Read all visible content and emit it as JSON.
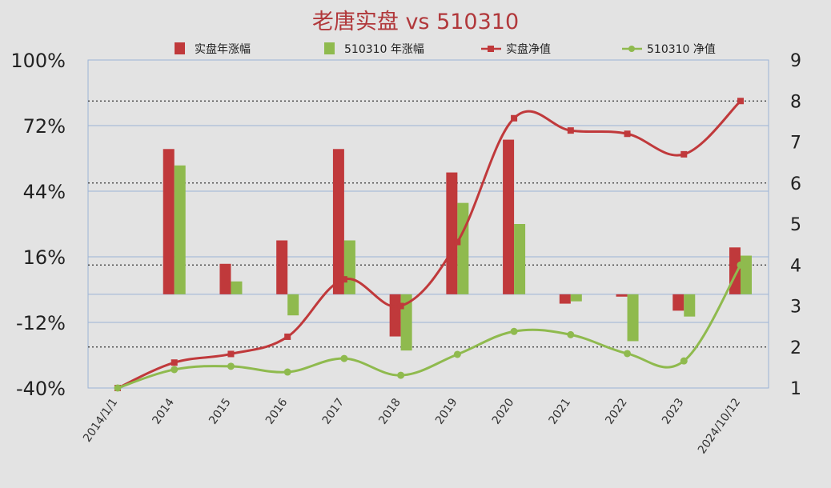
{
  "chart_data": {
    "type": "bar",
    "title": "老唐实盘 vs 510310",
    "categories": [
      "2014/1/1",
      "2014",
      "2015",
      "2016",
      "2017",
      "2018",
      "2019",
      "2020",
      "2021",
      "2022",
      "2023",
      "2024/10/12"
    ],
    "y_left": {
      "ticks": [
        "100%",
        "72%",
        "44%",
        "16%",
        "-12%",
        "-40%"
      ],
      "range": [
        -40,
        100
      ]
    },
    "y_right": {
      "ticks": [
        "9",
        "8",
        "7",
        "6",
        "5",
        "4",
        "3",
        "2",
        "1"
      ],
      "range": [
        1,
        9
      ]
    },
    "grid": true,
    "legend_position": "top",
    "series": [
      {
        "name": "实盘年涨幅",
        "kind": "bar",
        "axis": "left",
        "color": "#c0393b",
        "values": [
          null,
          62,
          13,
          23,
          62,
          -18,
          52,
          66,
          -4,
          -1,
          -7,
          20
        ]
      },
      {
        "name": "510310 年涨幅",
        "kind": "bar",
        "axis": "left",
        "color": "#8fba4e",
        "values": [
          null,
          55,
          5.5,
          -9,
          23,
          -24,
          39,
          30,
          -3,
          -20,
          -9.5,
          16.5
        ]
      },
      {
        "name": "实盘净值",
        "kind": "line",
        "axis": "right",
        "color": "#c0393b",
        "marker": "square",
        "values": [
          1,
          1.62,
          1.83,
          2.25,
          3.65,
          3.0,
          4.56,
          7.58,
          7.28,
          7.2,
          6.7,
          8.0
        ]
      },
      {
        "name": "510310 净值",
        "kind": "line",
        "axis": "right",
        "color": "#8fba4e",
        "marker": "circle",
        "values": [
          1,
          1.45,
          1.53,
          1.39,
          1.72,
          1.31,
          1.82,
          2.38,
          2.3,
          1.84,
          1.66,
          4.0
        ]
      }
    ]
  }
}
